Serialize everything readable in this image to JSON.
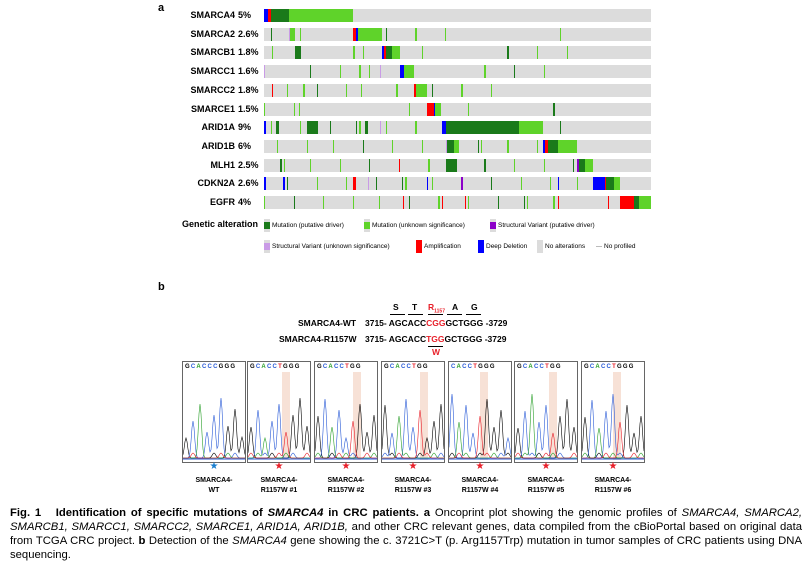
{
  "panel_a": {
    "label": "a",
    "genes": [
      {
        "name": "SMARCA4",
        "pct": "5%"
      },
      {
        "name": "SMARCA2",
        "pct": "2.6%"
      },
      {
        "name": "SMARCB1",
        "pct": "1.8%"
      },
      {
        "name": "SMARCC1",
        "pct": "1.6%"
      },
      {
        "name": "SMARCC2",
        "pct": "1.8%"
      },
      {
        "name": "SMARCE1",
        "pct": "1.5%"
      },
      {
        "name": "ARID1A",
        "pct": "9%"
      },
      {
        "name": "ARID1B",
        "pct": "6%"
      },
      {
        "name": "MLH1",
        "pct": "2.5%"
      },
      {
        "name": "CDKN2A",
        "pct": "2.6%"
      },
      {
        "name": "EGFR",
        "pct": "4%"
      }
    ],
    "legend_title": "Genetic alteration",
    "legend": [
      {
        "label": "Mutation (putative driver)",
        "color": "#1a7a1a"
      },
      {
        "label": "Mutation (unknown significance)",
        "color": "#5fd32a"
      },
      {
        "label": "Structural Variant (putative driver)",
        "color": "#8b00c8"
      },
      {
        "label": "Structural Variant (unknown significance)",
        "color": "#c99be6"
      },
      {
        "label": "Amplification",
        "color": "#ff0000"
      },
      {
        "label": "Deep Deletion",
        "color": "#0000ff"
      },
      {
        "label": "No alterations",
        "color": "#dcdcdc"
      },
      {
        "label": "No profiled",
        "color": "#bbbbbb"
      }
    ]
  },
  "panel_b": {
    "label": "b",
    "codons": [
      "S",
      "T",
      "R",
      "A",
      "G"
    ],
    "codon_sub": "1157",
    "wt_label": "SMARCA4-WT",
    "wt_start": "3715-",
    "wt_pre": "AGCACC",
    "wt_mut": "CGG",
    "wt_post": "GCTGGG",
    "wt_end": "-3729",
    "mut_label": "SMARCA4-R1157W",
    "mut_start": "3715-",
    "mut_pre": "AGCACC",
    "mut_mut": "TGG",
    "mut_post": "GCTGGG",
    "mut_end": "-3729",
    "aa_change": "W",
    "samples": [
      {
        "bases": "GCACCCGGG",
        "l1": "SMARCA4-",
        "l2": "WT",
        "star_color": "#1a7fd0"
      },
      {
        "bases": "GCACCTGGG",
        "l1": "SMARCA4-",
        "l2": "R1157W #1",
        "star_color": "#e8202a"
      },
      {
        "bases": "GCACCTGG",
        "l1": "SMARCA4-",
        "l2": "R1157W #2",
        "star_color": "#e8202a"
      },
      {
        "bases": "GCACCTGG",
        "l1": "SMARCA4-",
        "l2": "R1157W #3",
        "star_color": "#e8202a"
      },
      {
        "bases": "CACCTGGG",
        "l1": "SMARCA4-",
        "l2": "R1157W #4",
        "star_color": "#e8202a"
      },
      {
        "bases": "GCACCTGG",
        "l1": "SMARCA4-",
        "l2": "R1157W #5",
        "star_color": "#e8202a"
      },
      {
        "bases": "GCACCTGGG",
        "l1": "SMARCA4-",
        "l2": "R1157W #6",
        "star_color": "#e8202a"
      }
    ]
  },
  "caption": {
    "fig": "Fig. 1",
    "t1": "Identification of specific mutations of ",
    "t1i": "SMARCA4",
    "t1b": " in CRC patients.",
    "a": " a",
    "s1": " Oncoprint plot showing the genomic profiles of ",
    "genes": "SMARCA4, SMARCA2, SMARCB1, SMARCC1, SMARCC2, SMARCE1, ARID1A, ARID1B,",
    "s2": " and other CRC relevant genes, data compiled from the cBioPortal based on original data from TCGA CRC project.",
    "b": " b",
    "s3": " Detection of the ",
    "s3i": "SMARCA4",
    "s4": " gene showing the c. 3721C>T (p. Arg1157Trp) mutation in tumor samples of CRC patients using DNA sequencing."
  }
}
